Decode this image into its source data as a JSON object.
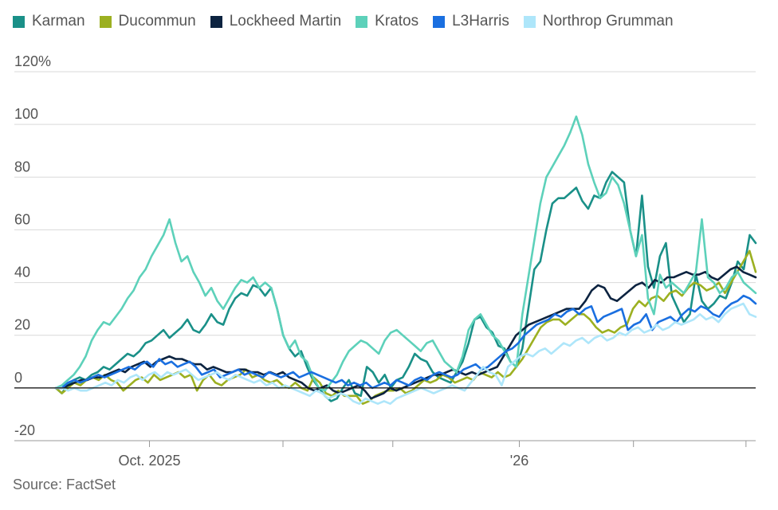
{
  "chart_data": {
    "type": "line",
    "title": "",
    "xlabel": "",
    "ylabel": "",
    "y_unit_label": "%",
    "ylim": [
      -20,
      120
    ],
    "y_ticks": [
      120,
      100,
      80,
      60,
      40,
      20,
      0,
      -20
    ],
    "y_tick_labels": [
      "120%",
      "100",
      "80",
      "60",
      "40",
      "20",
      "0",
      "-20"
    ],
    "x_range": [
      0,
      130
    ],
    "x_tick_positions": [
      17.4,
      42.2,
      62.6,
      86.1,
      107.3,
      128.2
    ],
    "x_labels": [
      {
        "label": "Oct. 2025",
        "x": 17.4
      },
      {
        "label": "'26",
        "x": 86.1
      }
    ],
    "source": "Source: FactSet",
    "series": [
      {
        "name": "Karman",
        "color": "#1a9088",
        "values": [
          0,
          -2,
          1,
          3,
          4,
          3,
          5,
          6,
          8,
          7,
          9,
          11,
          13,
          12,
          14,
          17,
          18,
          20,
          22,
          19,
          21,
          23,
          26,
          22,
          21,
          24,
          28,
          25,
          24,
          30,
          34,
          36,
          35,
          39,
          38,
          35,
          38,
          30,
          20,
          15,
          12,
          14,
          8,
          3,
          0,
          -3,
          -5,
          -4,
          0,
          3,
          -2,
          -3,
          8,
          6,
          2,
          5,
          0,
          3,
          4,
          8,
          13,
          11,
          10,
          6,
          4,
          3,
          2,
          6,
          10,
          17,
          26,
          27,
          23,
          21,
          16,
          15,
          10,
          8,
          15,
          30,
          45,
          48,
          60,
          70,
          72,
          72,
          74,
          76,
          71,
          68,
          73,
          72,
          78,
          82,
          80,
          78,
          60,
          50,
          73,
          46,
          38,
          50,
          55,
          35,
          30,
          25,
          28,
          43,
          33,
          30,
          32,
          35,
          34,
          40,
          48,
          45,
          58,
          55
        ]
      },
      {
        "name": "Ducommun",
        "color": "#9cb021",
        "values": [
          0,
          -2,
          0,
          2,
          1,
          3,
          4,
          3,
          5,
          3,
          2,
          -1,
          1,
          3,
          4,
          2,
          5,
          3,
          4,
          5,
          6,
          4,
          5,
          -1,
          3,
          5,
          2,
          1,
          3,
          4,
          5,
          7,
          4,
          5,
          3,
          2,
          3,
          1,
          0,
          2,
          0,
          -1,
          4,
          2,
          -2,
          -3,
          -1,
          -3,
          -3,
          -3,
          -6,
          -5,
          -3,
          -2,
          -1,
          -1,
          0,
          -2,
          -1,
          1,
          3,
          2,
          3,
          5,
          4,
          2,
          3,
          4,
          3,
          6,
          5,
          4,
          6,
          4,
          5,
          8,
          11,
          15,
          19,
          23,
          25,
          26,
          26,
          24,
          26,
          28,
          28,
          26,
          23,
          21,
          22,
          21,
          23,
          24,
          30,
          33,
          31,
          34,
          35,
          33,
          36,
          37,
          35,
          38,
          40,
          39,
          37,
          38,
          40,
          36,
          40,
          44,
          48,
          52,
          44
        ]
      },
      {
        "name": "Lockheed Martin",
        "color": "#0c2340",
        "values": [
          0,
          0,
          1,
          2,
          3,
          3,
          4,
          4,
          5,
          6,
          7,
          6,
          8,
          9,
          10,
          8,
          10,
          11,
          12,
          11,
          11,
          10,
          9,
          9,
          7,
          8,
          7,
          6,
          6,
          7,
          7,
          6,
          6,
          5,
          6,
          5,
          6,
          4,
          3,
          2,
          0,
          -1,
          0,
          1,
          -1,
          -2,
          -1,
          0,
          1,
          -1,
          -4,
          -3,
          -2,
          0,
          -1,
          0,
          1,
          2,
          3,
          4,
          5,
          5,
          6,
          7,
          6,
          5,
          6,
          5,
          6,
          7,
          8,
          12,
          16,
          20,
          22,
          24,
          25,
          26,
          27,
          28,
          29,
          30,
          30,
          30,
          33,
          37,
          39,
          38,
          34,
          33,
          35,
          37,
          39,
          40,
          38,
          41,
          40,
          42,
          42,
          43,
          44,
          43,
          43,
          44,
          42,
          41,
          43,
          45,
          46,
          44,
          43,
          42
        ]
      },
      {
        "name": "Kratos",
        "color": "#5dd1ba",
        "values": [
          0,
          1,
          3,
          5,
          8,
          12,
          18,
          22,
          25,
          24,
          27,
          30,
          34,
          37,
          42,
          45,
          50,
          54,
          58,
          64,
          55,
          48,
          50,
          44,
          40,
          35,
          38,
          33,
          30,
          34,
          38,
          41,
          40,
          42,
          38,
          40,
          38,
          30,
          20,
          15,
          18,
          12,
          10,
          4,
          0,
          -1,
          2,
          5,
          10,
          14,
          16,
          18,
          17,
          15,
          13,
          18,
          21,
          22,
          20,
          18,
          16,
          14,
          17,
          18,
          14,
          10,
          8,
          6,
          12,
          22,
          26,
          28,
          24,
          20,
          18,
          14,
          10,
          8,
          28,
          42,
          56,
          70,
          80,
          84,
          88,
          92,
          97,
          103,
          96,
          85,
          78,
          72,
          74,
          80,
          77,
          70,
          60,
          50,
          58,
          34,
          28,
          43,
          38,
          40,
          38,
          36,
          40,
          44,
          64,
          42,
          40,
          36,
          38,
          42,
          44,
          40,
          38,
          36
        ]
      },
      {
        "name": "L3Harris",
        "color": "#1a6fe0",
        "values": [
          0,
          0,
          2,
          3,
          2,
          3,
          4,
          5,
          4,
          5,
          6,
          7,
          8,
          7,
          9,
          10,
          8,
          11,
          9,
          10,
          8,
          9,
          10,
          8,
          5,
          6,
          7,
          4,
          5,
          6,
          7,
          5,
          6,
          5,
          4,
          6,
          5,
          4,
          5,
          6,
          4,
          5,
          6,
          5,
          4,
          3,
          2,
          3,
          1,
          2,
          1,
          2,
          0,
          1,
          2,
          1,
          3,
          2,
          1,
          3,
          4,
          3,
          5,
          6,
          5,
          4,
          5,
          7,
          8,
          9,
          7,
          8,
          10,
          12,
          14,
          15,
          17,
          20,
          22,
          24,
          25,
          26,
          28,
          27,
          29,
          30,
          28,
          30,
          31,
          25,
          27,
          28,
          29,
          30,
          22,
          24,
          25,
          28,
          22,
          25,
          26,
          27,
          25,
          28,
          30,
          29,
          31,
          30,
          28,
          27,
          30,
          32,
          33,
          35,
          34,
          32
        ]
      },
      {
        "name": "Northrop Grumman",
        "color": "#aee6fa",
        "values": [
          0,
          0,
          -1,
          0,
          -1,
          -1,
          0,
          1,
          2,
          1,
          3,
          2,
          4,
          5,
          3,
          5,
          6,
          4,
          6,
          5,
          6,
          7,
          5,
          3,
          4,
          5,
          6,
          4,
          3,
          5,
          4,
          3,
          2,
          3,
          1,
          2,
          0,
          1,
          0,
          -1,
          -2,
          -3,
          -1,
          -2,
          -4,
          -3,
          -2,
          -3,
          -5,
          -6,
          -4,
          -5,
          -6,
          -5,
          -6,
          -4,
          -3,
          -2,
          -1,
          0,
          -1,
          -2,
          -1,
          0,
          1,
          0,
          -1,
          2,
          5,
          8,
          6,
          5,
          1,
          8,
          10,
          12,
          13,
          12,
          14,
          15,
          13,
          15,
          17,
          16,
          18,
          19,
          17,
          19,
          20,
          18,
          19,
          21,
          20,
          22,
          23,
          21,
          22,
          24,
          22,
          23,
          25,
          24,
          25,
          26,
          28,
          26,
          27,
          25,
          28,
          30,
          31,
          32,
          28,
          27
        ]
      }
    ]
  }
}
